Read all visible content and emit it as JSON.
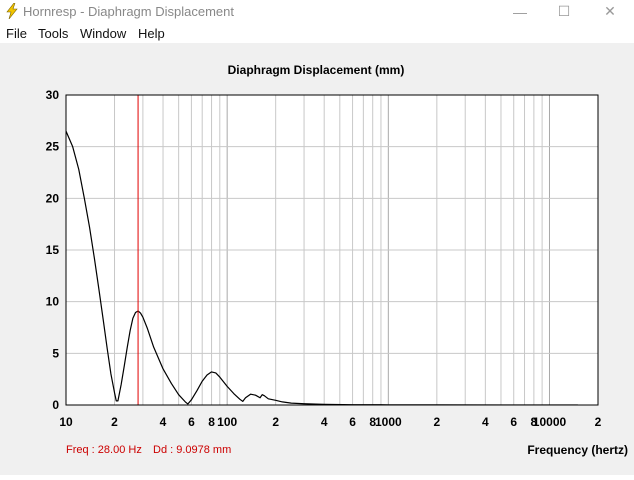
{
  "window": {
    "title": "Hornresp - Diaphragm Displacement",
    "icon": "lightning-bolt-icon",
    "controls": {
      "minimize": "—",
      "maximize": "☐",
      "close": "✕"
    }
  },
  "menu": {
    "items": [
      {
        "label": "File"
      },
      {
        "label": "Tools"
      },
      {
        "label": "Window"
      },
      {
        "label": "Help"
      }
    ]
  },
  "status": {
    "freq_label": "Freq : 28.00 Hz",
    "dd_label": "Dd : 9.0978 mm"
  },
  "colors": {
    "curve": "#000000",
    "cursor": "#e00000",
    "grid": "#c8c8c8",
    "plot_background": "#ffffff",
    "window_background": "#f0f0f0"
  },
  "chart_data": {
    "type": "line",
    "title": "Diaphragm Displacement (mm)",
    "xlabel": "Frequency (hertz)",
    "ylabel": "",
    "x_scale": "log",
    "xlim": [
      10,
      20000
    ],
    "ylim": [
      0,
      30
    ],
    "grid": true,
    "y_ticks": [
      "0",
      "5",
      "10",
      "15",
      "20",
      "25",
      "30"
    ],
    "x_ticks": [
      {
        "value": 10,
        "label": "10"
      },
      {
        "value": 20,
        "label": "2"
      },
      {
        "value": 40,
        "label": "4"
      },
      {
        "value": 60,
        "label": "6"
      },
      {
        "value": 80,
        "label": "8"
      },
      {
        "value": 100,
        "label": "100"
      },
      {
        "value": 200,
        "label": "2"
      },
      {
        "value": 400,
        "label": "4"
      },
      {
        "value": 600,
        "label": "6"
      },
      {
        "value": 800,
        "label": "8"
      },
      {
        "value": 1000,
        "label": "1000"
      },
      {
        "value": 2000,
        "label": "2"
      },
      {
        "value": 4000,
        "label": "4"
      },
      {
        "value": 6000,
        "label": "6"
      },
      {
        "value": 8000,
        "label": "8"
      },
      {
        "value": 10000,
        "label": "10000"
      },
      {
        "value": 20000,
        "label": "2"
      }
    ],
    "cursor_x": 28,
    "series": [
      {
        "points": [
          [
            10,
            26.5
          ],
          [
            11,
            25
          ],
          [
            12,
            22.8
          ],
          [
            13,
            20
          ],
          [
            14,
            17.2
          ],
          [
            15,
            14.2
          ],
          [
            16,
            11.2
          ],
          [
            17,
            8.3
          ],
          [
            18,
            5.5
          ],
          [
            19,
            3
          ],
          [
            20,
            1.2
          ],
          [
            20.5,
            0.4
          ],
          [
            21,
            0.4
          ],
          [
            22,
            2
          ],
          [
            23,
            3.8
          ],
          [
            24,
            5.6
          ],
          [
            25,
            7.2
          ],
          [
            26,
            8.4
          ],
          [
            27,
            8.95
          ],
          [
            28,
            9.1
          ],
          [
            29,
            8.9
          ],
          [
            30,
            8.5
          ],
          [
            32,
            7.4
          ],
          [
            35,
            5.6
          ],
          [
            40,
            3.5
          ],
          [
            45,
            2.1
          ],
          [
            50,
            1
          ],
          [
            55,
            0.3
          ],
          [
            57,
            0.1
          ],
          [
            60,
            0.5
          ],
          [
            65,
            1.4
          ],
          [
            70,
            2.3
          ],
          [
            75,
            2.9
          ],
          [
            80,
            3.2
          ],
          [
            85,
            3.1
          ],
          [
            90,
            2.7
          ],
          [
            100,
            1.8
          ],
          [
            110,
            1.1
          ],
          [
            120,
            0.55
          ],
          [
            125,
            0.35
          ],
          [
            130,
            0.7
          ],
          [
            140,
            1.05
          ],
          [
            150,
            0.95
          ],
          [
            160,
            0.7
          ],
          [
            165,
            1
          ],
          [
            170,
            0.9
          ],
          [
            180,
            0.6
          ],
          [
            200,
            0.45
          ],
          [
            220,
            0.3
          ],
          [
            250,
            0.18
          ],
          [
            300,
            0.12
          ],
          [
            400,
            0.06
          ],
          [
            600,
            0.03
          ],
          [
            1000,
            0.02
          ],
          [
            2000,
            0.01
          ],
          [
            5000,
            0.005
          ],
          [
            15000,
            0.005
          ]
        ]
      }
    ]
  }
}
